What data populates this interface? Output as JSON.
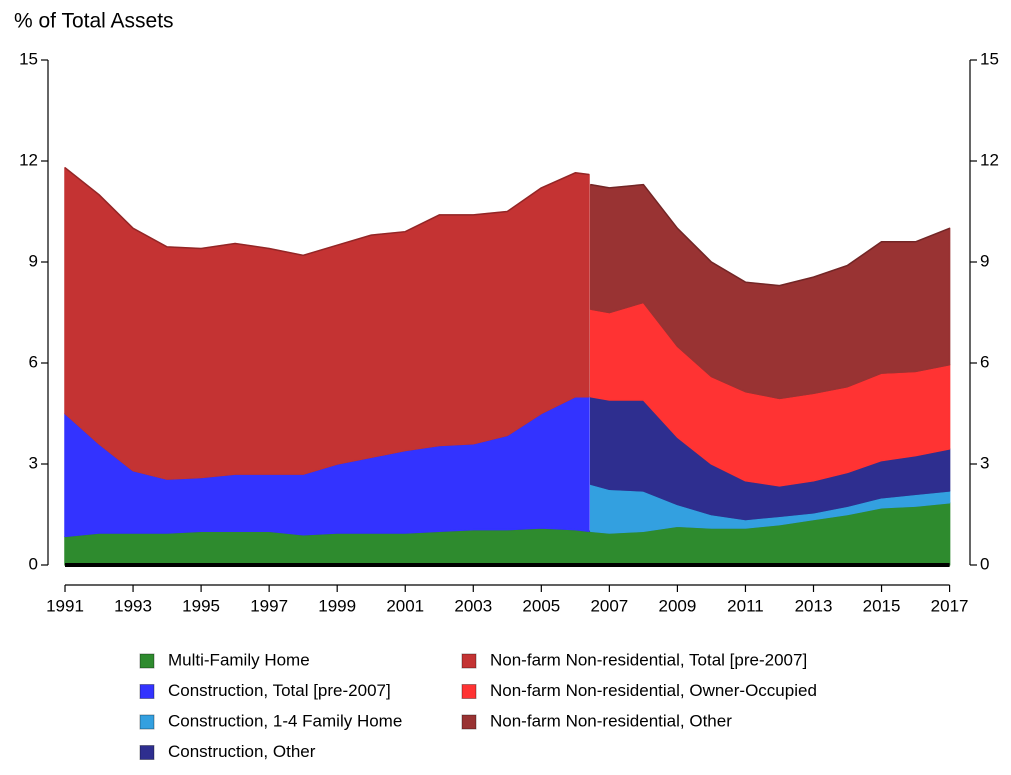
{
  "chart_data": {
    "type": "stacked_area",
    "ylabel": "% of Total Assets",
    "x": [
      1991,
      1992,
      1993,
      1994,
      1995,
      1996,
      1997,
      1998,
      1999,
      2000,
      2001,
      2002,
      2003,
      2004,
      2005,
      2006,
      2006.4,
      2006.45,
      2007,
      2008,
      2009,
      2010,
      2011,
      2012,
      2013,
      2014,
      2015,
      2016,
      2017
    ],
    "xlim": [
      1990.5,
      2017.6
    ],
    "xticks": [
      1991,
      1993,
      1995,
      1997,
      1999,
      2001,
      2003,
      2005,
      2007,
      2009,
      2011,
      2013,
      2015,
      2017
    ],
    "ylim": [
      0,
      15
    ],
    "yticks": [
      0,
      3,
      6,
      9,
      12,
      15
    ],
    "series": [
      {
        "name": "Multi-Family Home",
        "color": "#2e8b2e",
        "values": [
          0.85,
          0.95,
          0.95,
          0.95,
          1.0,
          1.0,
          1.0,
          0.9,
          0.95,
          0.95,
          0.95,
          1.0,
          1.05,
          1.05,
          1.1,
          1.05,
          1.0,
          1.0,
          0.95,
          1.0,
          1.15,
          1.1,
          1.1,
          1.2,
          1.35,
          1.5,
          1.7,
          1.75,
          1.85
        ]
      },
      {
        "name": "Construction, Total [pre-2007]",
        "color": "#3333ff",
        "values": [
          3.65,
          2.65,
          1.85,
          1.6,
          1.6,
          1.7,
          1.7,
          1.8,
          2.05,
          2.25,
          2.45,
          2.55,
          2.55,
          2.8,
          3.4,
          3.95,
          4.0,
          null,
          null,
          null,
          null,
          null,
          null,
          null,
          null,
          null,
          null,
          null,
          null
        ]
      },
      {
        "name": "Construction, 1-4 Family Home",
        "color": "#33a0e0",
        "values": [
          null,
          null,
          null,
          null,
          null,
          null,
          null,
          null,
          null,
          null,
          null,
          null,
          null,
          null,
          null,
          null,
          null,
          1.4,
          1.3,
          1.2,
          0.65,
          0.4,
          0.25,
          0.25,
          0.2,
          0.25,
          0.3,
          0.35,
          0.35
        ]
      },
      {
        "name": "Construction, Other",
        "color": "#2e2e8f",
        "values": [
          null,
          null,
          null,
          null,
          null,
          null,
          null,
          null,
          null,
          null,
          null,
          null,
          null,
          null,
          null,
          null,
          null,
          2.6,
          2.65,
          2.7,
          2.0,
          1.5,
          1.15,
          0.9,
          0.95,
          1.0,
          1.1,
          1.15,
          1.25
        ]
      },
      {
        "name": "Non-farm Non-residential, Total [pre-2007]",
        "color": "#c43333",
        "values": [
          7.3,
          7.4,
          7.2,
          6.9,
          6.8,
          6.85,
          6.7,
          6.5,
          6.5,
          6.6,
          6.5,
          6.85,
          6.8,
          6.65,
          6.7,
          6.65,
          6.6,
          null,
          null,
          null,
          null,
          null,
          null,
          null,
          null,
          null,
          null,
          null,
          null
        ]
      },
      {
        "name": "Non-farm Non-residential, Owner-Occupied",
        "color": "#ff3333",
        "values": [
          null,
          null,
          null,
          null,
          null,
          null,
          null,
          null,
          null,
          null,
          null,
          null,
          null,
          null,
          null,
          null,
          null,
          2.6,
          2.6,
          2.9,
          2.7,
          2.6,
          2.65,
          2.6,
          2.6,
          2.55,
          2.6,
          2.5,
          2.5
        ]
      },
      {
        "name": "Non-farm Non-residential, Other",
        "color": "#993333",
        "values": [
          null,
          null,
          null,
          null,
          null,
          null,
          null,
          null,
          null,
          null,
          null,
          null,
          null,
          null,
          null,
          null,
          null,
          3.7,
          3.7,
          3.5,
          3.5,
          3.4,
          3.25,
          3.35,
          3.45,
          3.6,
          3.9,
          3.85,
          4.05
        ]
      }
    ]
  }
}
